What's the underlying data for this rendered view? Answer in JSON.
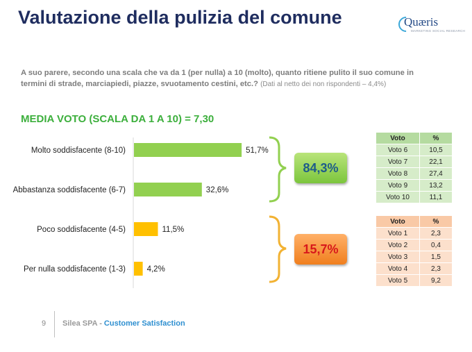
{
  "header": {
    "title": "Valutazione della pulizia del comune",
    "logo_name": "Quæris",
    "logo_tagline": "MARKETING SOCIAL RESEARCH"
  },
  "question": {
    "text": "A suo parere, secondo una scala che va da 1 (per nulla) a 10 (molto), quanto ritiene pulito il suo comune in termini di strade, marciapiedi, piazze, svuotamento cestini, etc.?",
    "note": "(Dati al netto dei non rispondenti – 4,4%)"
  },
  "media_voto": "MEDIA VOTO (SCALA DA 1 A 10) = 7,30",
  "chart_data": {
    "type": "bar",
    "orientation": "horizontal",
    "categories": [
      "Molto soddisfacente (8-10)",
      "Abbastanza soddisfacente (6-7)",
      "Poco soddisfacente (4-5)",
      "Per nulla soddisfacente (1-3)"
    ],
    "values": [
      51.7,
      32.6,
      11.5,
      4.2
    ],
    "value_labels": [
      "51,7%",
      "32,6%",
      "11,5%",
      "4,2%"
    ],
    "bar_colors": [
      "#92d050",
      "#92d050",
      "#ffc000",
      "#ffc000"
    ],
    "xlim": [
      0,
      60
    ],
    "title": "",
    "xlabel": "",
    "ylabel": ""
  },
  "groups": {
    "positive": {
      "label": "84,3%",
      "color": "#92d050"
    },
    "negative": {
      "label": "15,7%",
      "color": "#f2a533"
    }
  },
  "table_positive": {
    "headers": [
      "Voto",
      "%"
    ],
    "rows": [
      [
        "Voto 6",
        "10,5"
      ],
      [
        "Voto 7",
        "22,1"
      ],
      [
        "Voto 8",
        "27,4"
      ],
      [
        "Voto 9",
        "13,2"
      ],
      [
        "Voto 10",
        "11,1"
      ]
    ]
  },
  "table_negative": {
    "headers": [
      "Voto",
      "%"
    ],
    "rows": [
      [
        "Voto 1",
        "2,3"
      ],
      [
        "Voto 2",
        "0,4"
      ],
      [
        "Voto 3",
        "1,5"
      ],
      [
        "Voto 4",
        "2,3"
      ],
      [
        "Voto 5",
        "9,2"
      ]
    ]
  },
  "footer": {
    "page": "9",
    "company": "Silea SPA - ",
    "section": "Customer Satisfaction"
  }
}
